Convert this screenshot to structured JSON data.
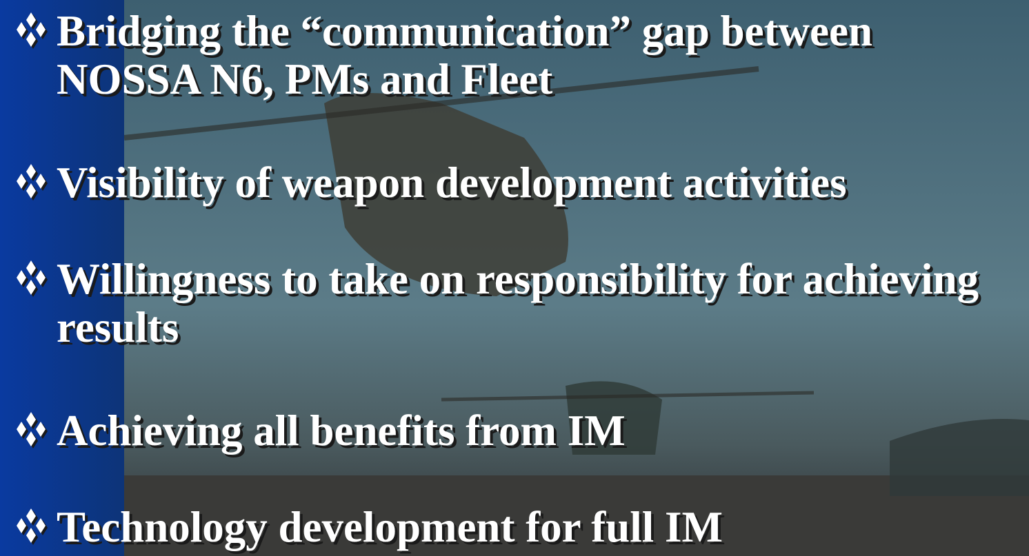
{
  "bullets": [
    "Bridging the “communication” gap between NOSSA N6, PMs and Fleet",
    "Visibility of weapon development activities",
    "Willingness to take on responsibility for achieving results",
    "Achieving all benefits from IM",
    "Technology development for full IM"
  ]
}
